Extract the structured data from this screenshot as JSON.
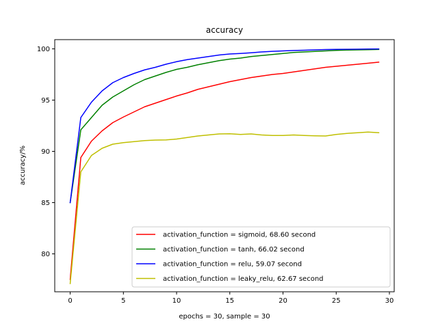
{
  "chart_data": {
    "type": "line",
    "title": "accuracy",
    "xlabel": "epochs = 30, sample = 30",
    "ylabel": "accuracy/%",
    "xlim": [
      -1.45,
      30.45
    ],
    "ylim": [
      76.3,
      100.9
    ],
    "xticks": [
      0,
      5,
      10,
      15,
      20,
      25,
      30
    ],
    "yticks": [
      80,
      85,
      90,
      95,
      100
    ],
    "grid": false,
    "legend_position": "bottom-right",
    "x": [
      0,
      1,
      2,
      3,
      4,
      5,
      6,
      7,
      8,
      9,
      10,
      11,
      12,
      13,
      14,
      15,
      16,
      17,
      18,
      19,
      20,
      21,
      22,
      23,
      24,
      25,
      26,
      27,
      28,
      29
    ],
    "series": [
      {
        "name": "activation_function = sigmoid, 68.60 second",
        "color": "#ff0000",
        "values": [
          77.5,
          89.4,
          91.0,
          92.0,
          92.8,
          93.35,
          93.85,
          94.35,
          94.7,
          95.05,
          95.4,
          95.7,
          96.05,
          96.3,
          96.55,
          96.8,
          97.0,
          97.2,
          97.35,
          97.5,
          97.6,
          97.75,
          97.9,
          98.05,
          98.2,
          98.3,
          98.4,
          98.5,
          98.6,
          98.7
        ]
      },
      {
        "name": "activation_function = tanh, 66.02 second",
        "color": "#008000",
        "values": [
          85.0,
          92.1,
          93.3,
          94.5,
          95.3,
          95.9,
          96.5,
          97.0,
          97.35,
          97.7,
          98.0,
          98.2,
          98.45,
          98.65,
          98.85,
          99.0,
          99.1,
          99.25,
          99.35,
          99.45,
          99.55,
          99.65,
          99.7,
          99.75,
          99.8,
          99.85,
          99.88,
          99.9,
          99.92,
          99.94
        ]
      },
      {
        "name": "activation_function = relu, 59.07 second",
        "color": "#0000ff",
        "values": [
          85.0,
          93.3,
          94.8,
          95.9,
          96.7,
          97.2,
          97.6,
          97.95,
          98.2,
          98.5,
          98.75,
          98.95,
          99.1,
          99.25,
          99.4,
          99.5,
          99.55,
          99.62,
          99.7,
          99.76,
          99.8,
          99.84,
          99.87,
          99.9,
          99.93,
          99.95,
          99.96,
          99.97,
          99.98,
          99.99
        ]
      },
      {
        "name": "activation_function = leaky_relu, 62.67 second",
        "color": "#bfbf00",
        "values": [
          77.1,
          88.0,
          89.6,
          90.3,
          90.7,
          90.85,
          90.95,
          91.05,
          91.1,
          91.12,
          91.2,
          91.35,
          91.5,
          91.6,
          91.7,
          91.72,
          91.65,
          91.7,
          91.6,
          91.55,
          91.55,
          91.6,
          91.55,
          91.52,
          91.5,
          91.65,
          91.75,
          91.82,
          91.88,
          91.82
        ]
      }
    ]
  }
}
